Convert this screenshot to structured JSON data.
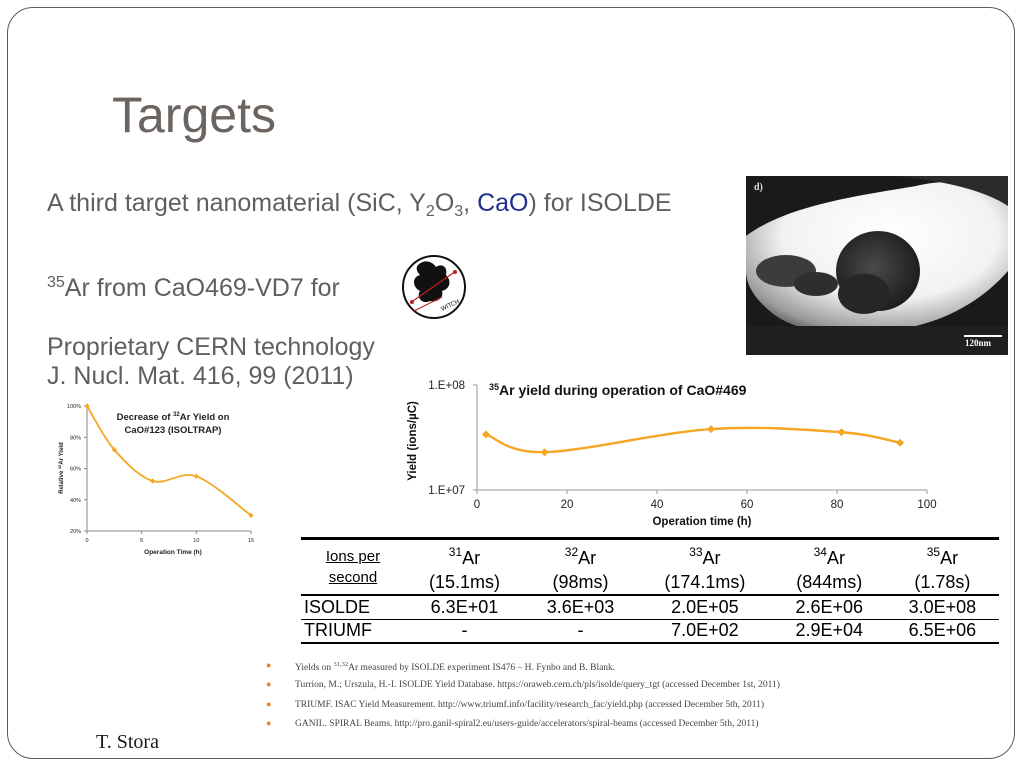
{
  "slide": {
    "title": "Targets",
    "line1": {
      "prefix": "A third target nanomaterial (SiC, Y",
      "sub1": "2",
      "o": "O",
      "sub2": "3",
      "sep": ", ",
      "highlight": "CaO",
      "suffix": ") for ISOLDE"
    },
    "line2": {
      "sup": "35",
      "text": "Ar from CaO469-VD7 for"
    },
    "line3": [
      "Proprietary CERN technology",
      "J. Nucl. Mat. 416, 99 (2011)"
    ],
    "logo_text": "WITCH",
    "micrograph": {
      "panel_label": "d)",
      "scale_label": "120nm"
    },
    "author": "T. Stora"
  },
  "colors": {
    "accent_orange": "#f5a623",
    "title_gray": "#6b6460",
    "cao_blue": "#1f2f8f",
    "bullet": "#e8832a"
  },
  "chart_data": [
    {
      "type": "line",
      "title_pre": "Decrease of ",
      "title_sup": "32",
      "title_post": "Ar Yield on",
      "title_line2": "CaO#123 (ISOLTRAP)",
      "xlabel": "Operation Time (h)",
      "ylabel_pre": "Relative ",
      "ylabel_sup": "32",
      "ylabel_post": "Ar Yield",
      "xlim": [
        0,
        15
      ],
      "ylim": [
        20,
        100
      ],
      "xticks": [
        "0",
        "5",
        "10",
        "15"
      ],
      "yticks": [
        "20%",
        "40%",
        "60%",
        "80%",
        "100%"
      ],
      "x": [
        0,
        2.5,
        6,
        10,
        15
      ],
      "y": [
        100,
        72,
        52,
        55,
        30
      ],
      "color": "#f5a623"
    },
    {
      "type": "line",
      "title_sup": "35",
      "title_post": "Ar yield during operation of CaO#469",
      "xlabel": "Operation time (h)",
      "ylabel": "Yield (ions/µC)",
      "xlim": [
        0,
        100
      ],
      "ylim_labels": [
        "1.E+07",
        "1.E+08"
      ],
      "yscale": "log",
      "xticks": [
        "0",
        "20",
        "40",
        "60",
        "80",
        "100"
      ],
      "x": [
        2,
        15,
        52,
        81,
        94
      ],
      "y_norm": [
        0.53,
        0.36,
        0.58,
        0.55,
        0.45
      ],
      "color": "#f5a623"
    }
  ],
  "table": {
    "header_label": [
      "Ions per",
      "second"
    ],
    "isotopes": [
      {
        "sup": "31",
        "name": "Ar",
        "halflife": "(15.1ms)"
      },
      {
        "sup": "32",
        "name": "Ar",
        "halflife": "(98ms)"
      },
      {
        "sup": "33",
        "name": "Ar",
        "halflife": "(174.1ms)"
      },
      {
        "sup": "34",
        "name": "Ar",
        "halflife": "(844ms)"
      },
      {
        "sup": "35",
        "name": "Ar",
        "halflife": "(1.78s)"
      }
    ],
    "rows": [
      {
        "facility": "ISOLDE",
        "values": [
          "6.3E+01",
          "3.6E+03",
          "2.0E+05",
          "2.6E+06",
          "3.0E+08"
        ]
      },
      {
        "facility": "TRIUMF",
        "values": [
          "-",
          "-",
          "7.0E+02",
          "2.9E+04",
          "6.5E+06"
        ]
      }
    ]
  },
  "references": [
    {
      "pre": "Yields on ",
      "sup": "31,32",
      "post": "Ar measured by ISOLDE experiment IS476 – H. Fynbo and B. Blank."
    },
    {
      "pre": "Turrion, M.; Urszula, H.-I. ISOLDE Yield Database. https://oraweb.cern.ch/pls/isolde/query_tgt (accessed December 1st, 2011)"
    },
    {
      "pre": "TRIUMF. ISAC Yield Measurement. http://www.triumf.info/facility/research_fac/yield.php (accessed December 5th, 2011)"
    },
    {
      "pre": "GANIL. SPIRAL Beams. http://pro.ganil-spiral2.eu/users-guide/accelerators/spiral-beams (accessed December 5th, 2011)"
    }
  ]
}
